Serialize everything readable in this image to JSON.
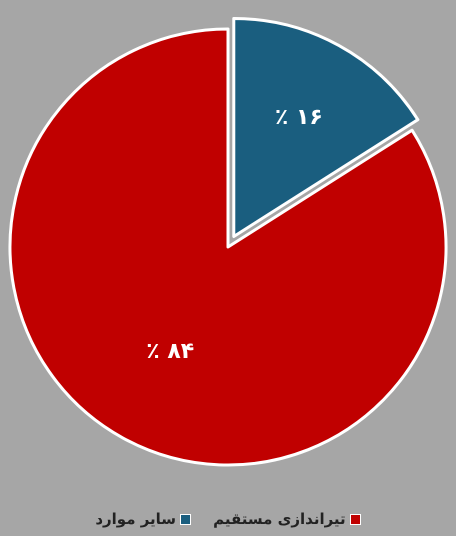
{
  "chart_data": {
    "type": "pie",
    "slices": [
      {
        "label": "سایر موارد",
        "value": 16,
        "data_label": "٪ ۱۶",
        "color": "#1a5e7f",
        "exploded": true
      },
      {
        "label": "تیراندازی مستقیم",
        "value": 84,
        "data_label": "٪ ۸۴",
        "color": "#c00000",
        "exploded": false
      }
    ],
    "legend": {
      "position": "bottom",
      "order": [
        "تیراندازی مستقیم",
        "سایر موارد"
      ]
    },
    "background": "#a6a6a6",
    "slice_border": "#ffffff",
    "label_color": "#ffffff"
  }
}
